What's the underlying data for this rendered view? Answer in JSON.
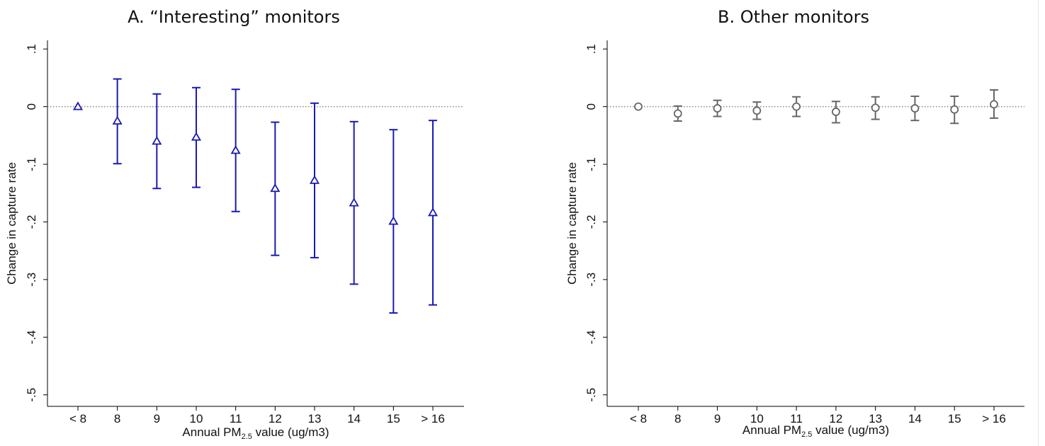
{
  "chart_data": [
    {
      "type": "scatter",
      "title": "A. “Interesting” monitors",
      "xlabel_prefix": "Annual PM",
      "xlabel_sub": "2.5",
      "xlabel_suffix": " value (ug/m3)",
      "ylabel": "Change in capture rate",
      "categories": [
        "< 8",
        "8",
        "9",
        "10",
        "11",
        "12",
        "13",
        "14",
        "15",
        "> 16"
      ],
      "series": [
        {
          "values": [
            0,
            -0.025,
            -0.06,
            -0.053,
            -0.076,
            -0.142,
            -0.128,
            -0.167,
            -0.199,
            -0.184
          ],
          "ci_low": [
            0,
            -0.099,
            -0.142,
            -0.14,
            -0.182,
            -0.258,
            -0.262,
            -0.308,
            -0.358,
            -0.344
          ],
          "ci_high": [
            0,
            0.048,
            0.022,
            0.033,
            0.03,
            -0.027,
            0.006,
            -0.026,
            -0.04,
            -0.024
          ],
          "marker": "triangle",
          "color": "#1a1ab3"
        }
      ],
      "yticks": [
        ".1",
        "0",
        "-.1",
        "-.2",
        "-.3",
        "-.4",
        "-.5"
      ],
      "ytick_values": [
        0.1,
        0,
        -0.1,
        -0.2,
        -0.3,
        -0.4,
        -0.5
      ],
      "ylim": [
        -0.52,
        0.115
      ],
      "reference_line": 0,
      "reference_color": "#888888",
      "grid": false
    },
    {
      "type": "scatter",
      "title": "B. Other monitors",
      "xlabel_prefix": "Annual PM",
      "xlabel_sub": "2.5",
      "xlabel_suffix": " value (ug/m3)",
      "ylabel": "Change in capture rate",
      "categories": [
        "< 8",
        "8",
        "9",
        "10",
        "11",
        "12",
        "13",
        "14",
        "15",
        "> 16"
      ],
      "series": [
        {
          "values": [
            0,
            -0.012,
            -0.003,
            -0.007,
            0,
            -0.009,
            -0.002,
            -0.003,
            -0.005,
            0.004
          ],
          "ci_low": [
            0,
            -0.025,
            -0.017,
            -0.022,
            -0.017,
            -0.028,
            -0.022,
            -0.024,
            -0.029,
            -0.02
          ],
          "ci_high": [
            0,
            0.001,
            0.011,
            0.008,
            0.017,
            0.009,
            0.017,
            0.018,
            0.018,
            0.029
          ],
          "marker": "circle",
          "color": "#666666"
        }
      ],
      "yticks": [
        ".1",
        "0",
        "-.1",
        "-.2",
        "-.3",
        "-.4",
        "-.5"
      ],
      "ytick_values": [
        0.1,
        0,
        -0.1,
        -0.2,
        -0.3,
        -0.4,
        -0.5
      ],
      "ylim": [
        -0.52,
        0.115
      ],
      "reference_line": 0,
      "reference_color": "#888888",
      "grid": false
    }
  ]
}
